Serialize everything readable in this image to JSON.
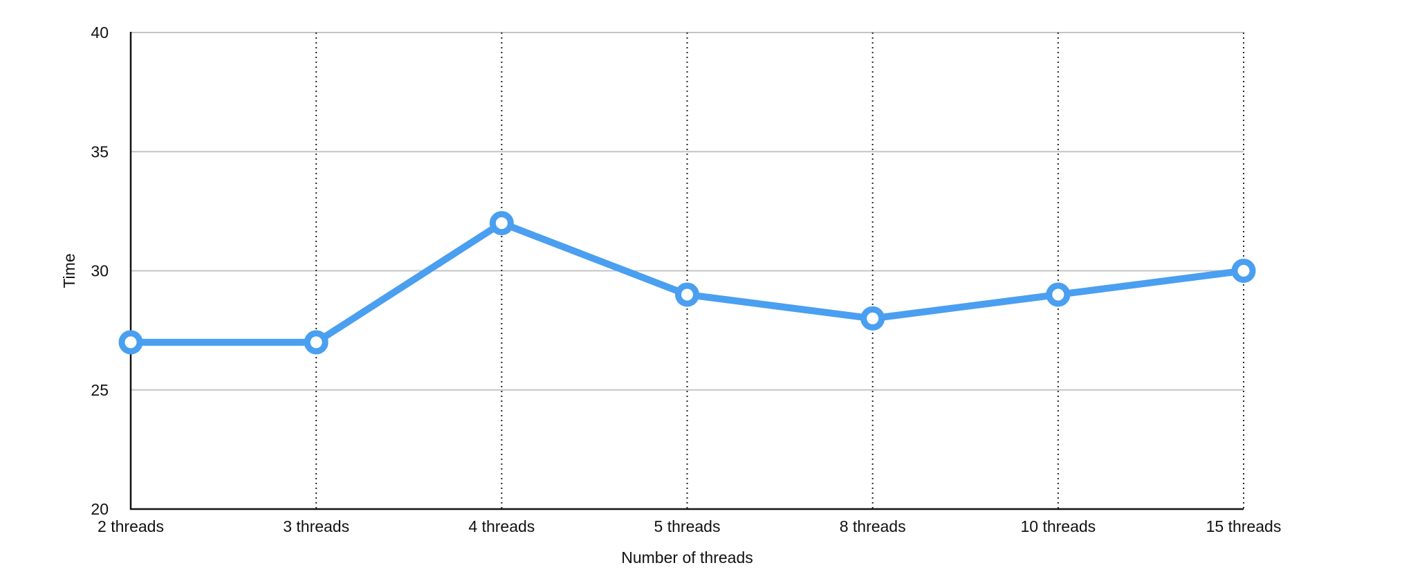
{
  "chart_data": {
    "type": "line",
    "title": "",
    "xlabel": "Number of threads",
    "ylabel": "Time",
    "categories": [
      "2 threads",
      "3 threads",
      "4 threads",
      "5 threads",
      "8 threads",
      "10 threads",
      "15 threads"
    ],
    "series": [
      {
        "values": [
          27,
          27,
          32,
          29,
          28,
          29,
          30
        ]
      }
    ],
    "ylim": [
      20,
      40
    ],
    "yticks": [
      20,
      25,
      30,
      35,
      40
    ],
    "grid": {
      "horizontal": "solid",
      "vertical": "dotted"
    },
    "legend": "none"
  },
  "colors": {
    "series": "#4a9ff0",
    "marker_fill": "#ffffff",
    "gridline": "#c4c4c4",
    "axis": "#111111"
  }
}
